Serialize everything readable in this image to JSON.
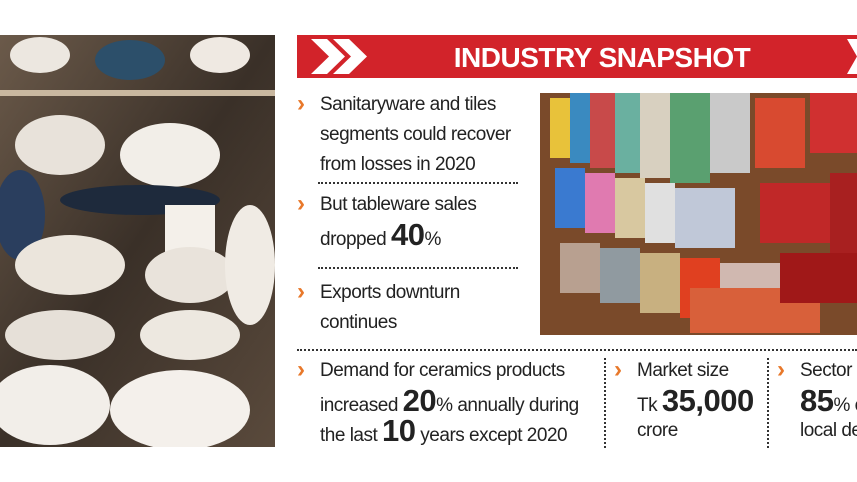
{
  "header": {
    "title": "INDUSTRY SNAPSHOT"
  },
  "items": [
    {
      "lines": [
        [
          "Sanitaryware and tiles"
        ],
        [
          "segments could recover"
        ],
        [
          "from losses in 2020"
        ]
      ]
    },
    {
      "lines": [
        [
          "But tableware sales"
        ],
        [
          "dropped ",
          {
            "big": "40"
          },
          "%"
        ]
      ]
    },
    {
      "lines": [
        [
          "Exports downturn"
        ],
        [
          "continues"
        ]
      ]
    },
    {
      "lines": [
        [
          "Demand for ceramics products"
        ],
        [
          "increased ",
          {
            "big": "20"
          },
          "% annually during"
        ],
        [
          "the last ",
          {
            "big": "10"
          },
          " years except 2020"
        ]
      ]
    },
    {
      "lines": [
        [
          "Market size"
        ],
        [
          "Tk ",
          {
            "big": "35,000"
          }
        ],
        [
          "crore"
        ]
      ]
    },
    {
      "lines": [
        [
          "Sector m"
        ],
        [
          {
            "big": "85"
          },
          "% o"
        ],
        [
          "local de"
        ]
      ]
    }
  ]
}
